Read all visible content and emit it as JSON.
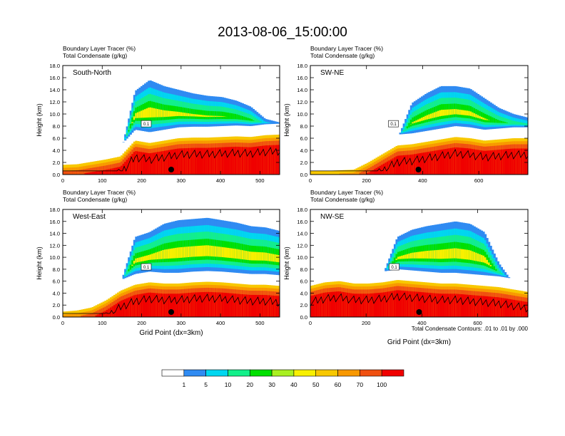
{
  "figure": {
    "title": "2013-08-06_15:00:00",
    "note": "Total Condensate Contours: .01 to .01 by .000"
  },
  "chart_data": [
    {
      "type": "heatmap",
      "panel_label": "South-North",
      "header_lines": [
        "Boundary Layer Tracer   (%)",
        "Total Condensate   (g/kg)"
      ],
      "ylabel": "Height (km)",
      "xlabel": "",
      "xlim": [
        0,
        550
      ],
      "ylim": [
        0,
        18
      ],
      "xticks": [
        "0",
        "100",
        "200",
        "300",
        "400",
        "500"
      ],
      "xtick_values": [
        0,
        100,
        200,
        300,
        400,
        500
      ],
      "yticks": [
        "0.0",
        "2.0",
        "4.0",
        "6.0",
        "8.0",
        "10.0",
        "12.0",
        "14.0",
        "16.0",
        "18.0"
      ],
      "contour_label": "0.1",
      "marker_x": 275,
      "cloud_top_km": [
        2.1,
        2.3,
        2.7,
        3.1,
        3.4,
        13.8,
        15.6,
        14.6,
        14.0,
        13.4,
        13.0,
        12.8,
        12.2,
        11.2,
        9.2,
        8.6
      ],
      "low_tracer_top_km": [
        1.6,
        1.7,
        2.1,
        2.5,
        3.0,
        5.6,
        5.2,
        5.6,
        6.0,
        6.1,
        6.1,
        6.2,
        6.3,
        6.2,
        6.5,
        6.6
      ]
    },
    {
      "type": "heatmap",
      "panel_label": "SW-NE",
      "header_lines": [
        "Boundary Layer Tracer   (%)",
        "Total Condensate   (g/kg)"
      ],
      "ylabel": "Height (km)",
      "xlabel": "",
      "xlim": [
        0,
        775
      ],
      "ylim": [
        0,
        18
      ],
      "xticks": [
        "0",
        "200",
        "400",
        "600"
      ],
      "xtick_values": [
        0,
        200,
        400,
        600
      ],
      "yticks": [
        "0.0",
        "2.0",
        "4.0",
        "6.0",
        "8.0",
        "10.0",
        "12.0",
        "14.0",
        "16.0",
        "18.0"
      ],
      "contour_label": "0.1",
      "marker_x": 385,
      "cloud_top_km": [
        0.8,
        0.8,
        0.9,
        1.0,
        2.8,
        4.2,
        5.8,
        11.8,
        13.4,
        14.6,
        14.6,
        14.2,
        12.6,
        11.0,
        10.0,
        9.4
      ],
      "low_tracer_top_km": [
        0.6,
        0.6,
        0.7,
        0.8,
        2.0,
        3.4,
        4.8,
        5.0,
        5.4,
        5.8,
        6.2,
        6.0,
        5.6,
        5.8,
        6.0,
        6.0
      ]
    },
    {
      "type": "heatmap",
      "panel_label": "West-East",
      "header_lines": [
        "Boundary Layer Tracer   (%)",
        "Total Condensate   (g/kg)"
      ],
      "ylabel": "Height (km)",
      "xlabel": "Grid Point (dx=3km)",
      "xlim": [
        0,
        550
      ],
      "ylim": [
        0,
        18
      ],
      "xticks": [
        "0",
        "100",
        "200",
        "300",
        "400",
        "500"
      ],
      "xtick_values": [
        0,
        100,
        200,
        300,
        400,
        500
      ],
      "yticks": [
        "0.0",
        "2.0",
        "4.0",
        "6.0",
        "8.0",
        "10.0",
        "12.0",
        "14.0",
        "16.0",
        "18.0"
      ],
      "contour_label": "0.1",
      "marker_x": 275,
      "cloud_top_km": [
        1.2,
        1.4,
        2.0,
        3.4,
        5.6,
        13.4,
        14.2,
        15.6,
        16.2,
        16.4,
        16.6,
        16.2,
        15.8,
        15.2,
        15.0,
        14.4
      ],
      "low_tracer_top_km": [
        0.9,
        1.1,
        1.6,
        2.8,
        4.4,
        5.4,
        5.8,
        5.6,
        5.6,
        5.8,
        5.9,
        5.8,
        5.6,
        5.4,
        5.4,
        5.2
      ]
    },
    {
      "type": "heatmap",
      "panel_label": "NW-SE",
      "header_lines": [
        "Boundary Layer Tracer   (%)",
        "Total Condensate   (g/kg)"
      ],
      "ylabel": "Height (km)",
      "xlabel": "Grid Point (dx=3km)",
      "xlim": [
        0,
        780
      ],
      "ylim": [
        0,
        18
      ],
      "xticks": [
        "0",
        "200",
        "400",
        "600"
      ],
      "xtick_values": [
        0,
        200,
        400,
        600
      ],
      "yticks": [
        "0.0",
        "2.0",
        "4.0",
        "6.0",
        "8.0",
        "10.0",
        "12.0",
        "14.0",
        "16.0",
        "18.0"
      ],
      "contour_label": "0.1",
      "marker_x": 390,
      "cloud_top_km": [
        6.4,
        7.0,
        7.2,
        6.6,
        6.8,
        7.0,
        13.4,
        14.6,
        15.2,
        15.6,
        16.0,
        15.6,
        14.2,
        9.0,
        5.6,
        4.6
      ],
      "low_tracer_top_km": [
        5.2,
        5.8,
        6.0,
        5.6,
        5.6,
        5.8,
        6.2,
        6.0,
        5.8,
        5.6,
        5.6,
        5.4,
        5.2,
        5.0,
        4.6,
        4.2
      ]
    }
  ],
  "colorbar": {
    "labels": [
      "1",
      "5",
      "10",
      "20",
      "30",
      "40",
      "50",
      "60",
      "70",
      "100"
    ],
    "colors": [
      "#ffffff",
      "#2f8bf2",
      "#00d7f0",
      "#12f08a",
      "#00e000",
      "#a8f020",
      "#f8f000",
      "#f8c800",
      "#f89800",
      "#f05010",
      "#f00000"
    ]
  }
}
